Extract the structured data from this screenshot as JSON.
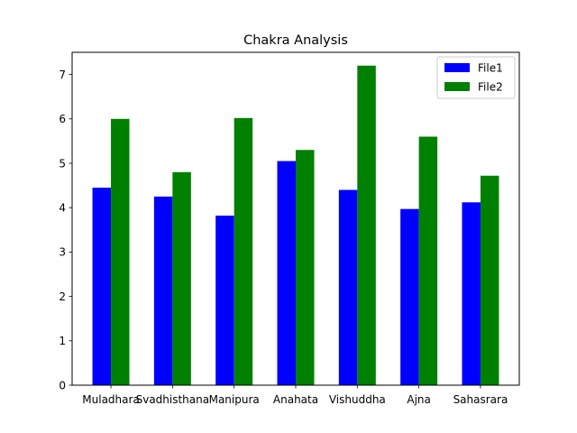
{
  "chart_data": {
    "type": "bar",
    "title": "Chakra Analysis",
    "xlabel": "",
    "ylabel": "",
    "categories": [
      "Muladhara",
      "Svadhisthana",
      "Manipura",
      "Anahata",
      "Vishuddha",
      "Ajna",
      "Sahasrara"
    ],
    "series": [
      {
        "name": "File1",
        "color": "#0000ff",
        "values": [
          4.45,
          4.25,
          3.82,
          5.05,
          4.4,
          3.97,
          4.12
        ]
      },
      {
        "name": "File2",
        "color": "#008000",
        "values": [
          6.0,
          4.8,
          6.02,
          5.3,
          7.2,
          5.6,
          4.72
        ]
      }
    ],
    "ylim": [
      0,
      7.5
    ],
    "yticks": [
      0,
      1,
      2,
      3,
      4,
      5,
      6,
      7
    ],
    "grid": false,
    "legend_position": "top-right"
  }
}
